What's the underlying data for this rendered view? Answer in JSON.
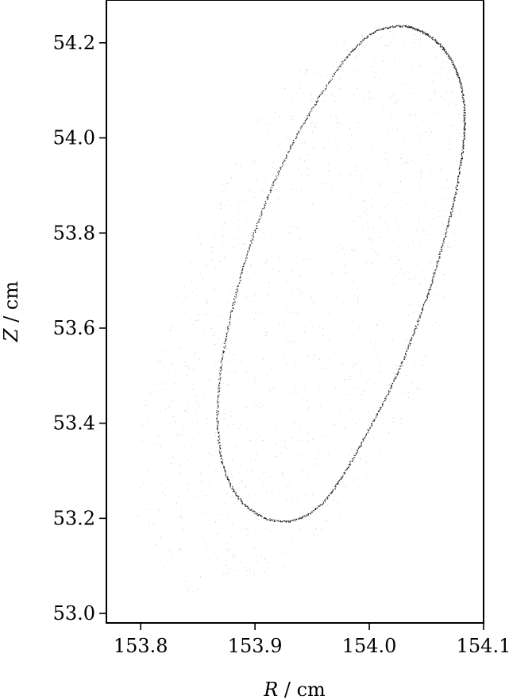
{
  "chart_data": {
    "type": "scatter",
    "title": "",
    "xlabel": {
      "symbol": "R",
      "unit": " / cm"
    },
    "ylabel": {
      "symbol": "Z",
      "unit": " / cm"
    },
    "xlim": [
      153.77,
      154.1
    ],
    "ylim": [
      52.98,
      54.29
    ],
    "xticks": [
      153.8,
      153.9,
      154.0,
      154.1
    ],
    "xtick_labels": [
      "153.8",
      "153.9",
      "154.0",
      "154.1"
    ],
    "yticks": [
      53.0,
      53.2,
      53.4,
      53.6,
      53.8,
      54.0,
      54.2
    ],
    "ytick_labels": [
      "53.0",
      "53.2",
      "53.4",
      "53.6",
      "53.8",
      "54.0",
      "54.2"
    ],
    "grid": false,
    "series": [
      {
        "kind": "dense-orbit",
        "color": "#000000",
        "points": [
          [
            154.028,
            54.236
          ],
          [
            154.045,
            54.225
          ],
          [
            154.06,
            54.2
          ],
          [
            154.072,
            54.16
          ],
          [
            154.08,
            54.11
          ],
          [
            154.083,
            54.05
          ],
          [
            154.082,
            53.99
          ],
          [
            154.078,
            53.92
          ],
          [
            154.071,
            53.84
          ],
          [
            154.062,
            53.76
          ],
          [
            154.052,
            53.68
          ],
          [
            154.04,
            53.6
          ],
          [
            154.027,
            53.52
          ],
          [
            154.011,
            53.44
          ],
          [
            153.993,
            53.36
          ],
          [
            153.975,
            53.285
          ],
          [
            153.955,
            53.225
          ],
          [
            153.93,
            53.195
          ],
          [
            153.905,
            53.205
          ],
          [
            153.885,
            53.245
          ],
          [
            153.872,
            53.31
          ],
          [
            153.867,
            53.4
          ],
          [
            153.869,
            53.5
          ],
          [
            153.876,
            53.6
          ],
          [
            153.886,
            53.7
          ],
          [
            153.899,
            53.8
          ],
          [
            153.915,
            53.9
          ],
          [
            153.935,
            54.0
          ],
          [
            153.957,
            54.09
          ],
          [
            153.98,
            54.17
          ],
          [
            154.003,
            54.222
          ],
          [
            154.028,
            54.236
          ]
        ]
      },
      {
        "kind": "diffuse-halo",
        "color": "#9a9a9a",
        "region_outer": [
          [
            154.0,
            54.24
          ],
          [
            154.045,
            54.24
          ],
          [
            154.078,
            54.19
          ],
          [
            154.087,
            54.08
          ],
          [
            154.084,
            53.9
          ],
          [
            154.07,
            53.7
          ],
          [
            154.04,
            53.45
          ],
          [
            153.99,
            53.25
          ],
          [
            153.94,
            53.12
          ],
          [
            153.9,
            53.06
          ],
          [
            153.84,
            53.04
          ],
          [
            153.8,
            53.1
          ],
          [
            153.79,
            53.3
          ],
          [
            153.815,
            53.55
          ],
          [
            153.85,
            53.8
          ],
          [
            153.89,
            54.0
          ],
          [
            153.94,
            54.16
          ],
          [
            154.0,
            54.24
          ]
        ]
      }
    ]
  }
}
